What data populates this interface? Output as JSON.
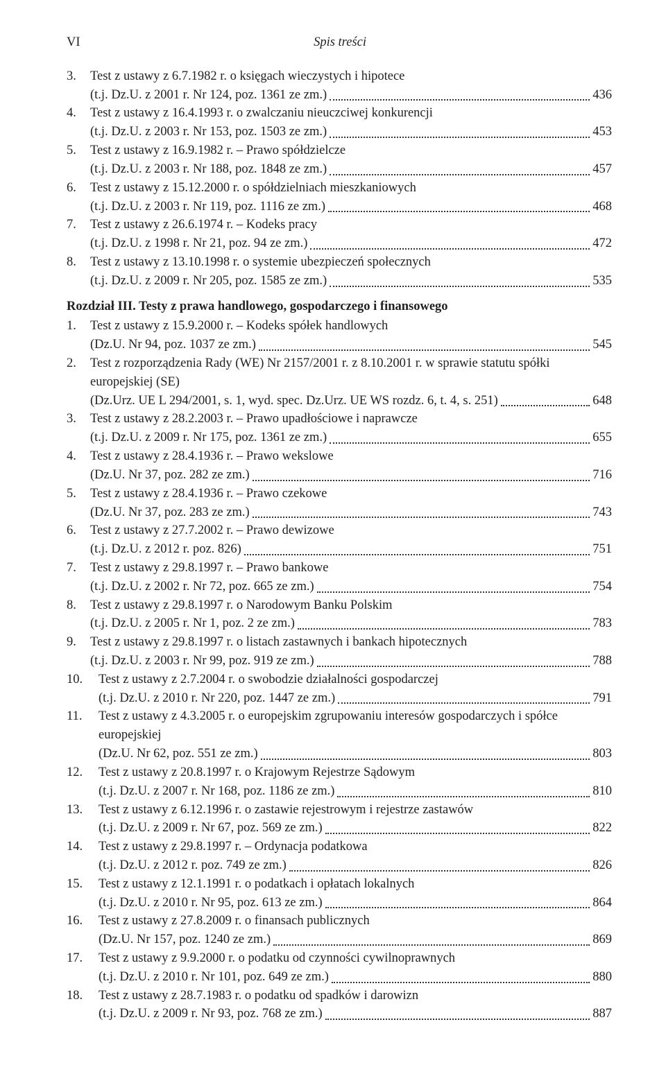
{
  "header": {
    "page_num": "VI",
    "title": "Spis treści"
  },
  "items": [
    {
      "type": "first",
      "num": "3.",
      "txt": "Test z ustawy z 6.7.1982 r. o księgach wieczystych i hipotece"
    },
    {
      "type": "cont",
      "txt": "(t.j. Dz.U. z 2001 r. Nr 124, poz. 1361 ze zm.)",
      "pg": "436"
    },
    {
      "type": "first",
      "num": "4.",
      "txt": "Test z ustawy z 16.4.1993 r. o zwalczaniu nieuczciwej konkurencji"
    },
    {
      "type": "cont",
      "txt": "(t.j. Dz.U. z 2003 r. Nr 153, poz. 1503 ze zm.)",
      "pg": "453"
    },
    {
      "type": "first",
      "num": "5.",
      "txt": "Test z ustawy z 16.9.1982 r. – Prawo spółdzielcze"
    },
    {
      "type": "cont",
      "txt": "(t.j. Dz.U. z 2003 r. Nr 188, poz. 1848 ze zm.)",
      "pg": "457"
    },
    {
      "type": "first",
      "num": "6.",
      "txt": "Test z ustawy z 15.12.2000 r. o spółdzielniach mieszkaniowych"
    },
    {
      "type": "cont",
      "txt": "(t.j. Dz.U. z 2003 r. Nr 119, poz. 1116 ze zm.)",
      "pg": "468"
    },
    {
      "type": "first",
      "num": "7.",
      "txt": "Test z ustawy z 26.6.1974 r. – Kodeks pracy"
    },
    {
      "type": "cont",
      "txt": "(t.j. Dz.U. z 1998 r. Nr 21, poz. 94 ze zm.)",
      "pg": "472"
    },
    {
      "type": "first",
      "num": "8.",
      "txt": "Test z ustawy z 13.10.1998 r. o systemie ubezpieczeń społecznych"
    },
    {
      "type": "cont",
      "txt": "(t.j. Dz.U. z 2009 r. Nr 205, poz. 1585 ze zm.)",
      "pg": "535"
    },
    {
      "type": "chapter",
      "txt": "Rozdział III. Testy z prawa handlowego, gospodarczego i finansowego"
    },
    {
      "type": "first",
      "num": "1.",
      "txt": "Test z ustawy z 15.9.2000 r. – Kodeks spółek handlowych"
    },
    {
      "type": "cont",
      "txt": "(Dz.U. Nr 94, poz. 1037 ze zm.)",
      "pg": "545"
    },
    {
      "type": "first",
      "num": "2.",
      "txt": "Test z rozporządzenia Rady (WE) Nr 2157/2001 r. z 8.10.2001 r. w sprawie statutu spółki"
    },
    {
      "type": "plain",
      "txt": "europejskiej (SE)"
    },
    {
      "type": "cont",
      "txt": "(Dz.Urz. UE L 294/2001, s. 1, wyd. spec. Dz.Urz. UE WS rozdz. 6, t. 4, s. 251)",
      "pg": "648"
    },
    {
      "type": "first",
      "num": "3.",
      "txt": "Test z ustawy z 28.2.2003 r. – Prawo upadłościowe i naprawcze"
    },
    {
      "type": "cont",
      "txt": "(t.j. Dz.U. z 2009 r. Nr 175, poz. 1361 ze zm.)",
      "pg": "655"
    },
    {
      "type": "first",
      "num": "4.",
      "txt": "Test z ustawy z 28.4.1936 r.  – Prawo wekslowe"
    },
    {
      "type": "cont",
      "txt": "(Dz.U. Nr 37, poz. 282 ze zm.)",
      "pg": "716"
    },
    {
      "type": "first",
      "num": "5.",
      "txt": "Test z ustawy z 28.4.1936 r. – Prawo czekowe"
    },
    {
      "type": "cont",
      "txt": "(Dz.U. Nr 37, poz. 283 ze zm.)",
      "pg": "743"
    },
    {
      "type": "first",
      "num": "6.",
      "txt": "Test z ustawy z 27.7.2002 r. – Prawo dewizowe"
    },
    {
      "type": "cont",
      "txt": "(t.j. Dz.U. z 2012 r. poz. 826)",
      "pg": "751"
    },
    {
      "type": "first",
      "num": "7.",
      "txt": "Test z ustawy z 29.8.1997 r. – Prawo bankowe"
    },
    {
      "type": "cont",
      "txt": "(t.j. Dz.U. z 2002 r. Nr 72, poz. 665 ze zm.)",
      "pg": "754"
    },
    {
      "type": "first",
      "num": "8.",
      "txt": "Test z ustawy z 29.8.1997 r. o Narodowym Banku Polskim"
    },
    {
      "type": "cont",
      "txt": "(t.j. Dz.U. z 2005 r. Nr 1, poz. 2 ze zm.)",
      "pg": "783"
    },
    {
      "type": "first",
      "num": "9.",
      "txt": "Test z ustawy z 29.8.1997 r. o listach zastawnych i bankach hipotecznych"
    },
    {
      "type": "cont",
      "txt": "(t.j. Dz.U. z 2003 r. Nr 99, poz. 919 ze zm.)",
      "pg": "788"
    },
    {
      "type": "first",
      "num": "10.",
      "numw": true,
      "txt": "Test z ustawy z 2.7.2004 r. o swobodzie działalności gospodarczej"
    },
    {
      "type": "contw",
      "txt": "(t.j. Dz.U. z 2010 r. Nr 220, poz. 1447 ze zm.)",
      "pg": "791"
    },
    {
      "type": "first",
      "num": "11.",
      "numw": true,
      "txt": "Test z ustawy z 4.3.2005 r. o europejskim zgrupowaniu interesów gospodarczych i spółce"
    },
    {
      "type": "plainw",
      "txt": "europejskiej"
    },
    {
      "type": "contw",
      "txt": "(Dz.U. Nr 62, poz. 551 ze zm.)",
      "pg": "803"
    },
    {
      "type": "first",
      "num": "12.",
      "numw": true,
      "txt": "Test z ustawy z 20.8.1997 r. o Krajowym Rejestrze Sądowym"
    },
    {
      "type": "contw",
      "txt": "(t.j. Dz.U. z 2007 r. Nr 168, poz. 1186 ze zm.)",
      "pg": "810"
    },
    {
      "type": "first",
      "num": "13.",
      "numw": true,
      "txt": "Test z ustawy z 6.12.1996 r. o zastawie rejestrowym i rejestrze zastawów"
    },
    {
      "type": "contw",
      "txt": "(t.j. Dz.U. z 2009 r. Nr 67, poz. 569 ze zm.)",
      "pg": "822"
    },
    {
      "type": "first",
      "num": "14.",
      "numw": true,
      "txt": "Test z ustawy z 29.8.1997 r. – Ordynacja podatkowa"
    },
    {
      "type": "contw",
      "txt": "(t.j. Dz.U. z 2012 r. poz. 749 ze zm.)",
      "pg": "826"
    },
    {
      "type": "first",
      "num": "15.",
      "numw": true,
      "txt": "Test z ustawy z 12.1.1991 r. o podatkach i opłatach lokalnych"
    },
    {
      "type": "contw",
      "txt": "(t.j. Dz.U. z 2010 r. Nr 95, poz. 613 ze zm.)",
      "pg": "864"
    },
    {
      "type": "first",
      "num": "16.",
      "numw": true,
      "txt": "Test z ustawy z 27.8.2009 r. o finansach publicznych"
    },
    {
      "type": "contw",
      "txt": "(Dz.U. Nr 157, poz. 1240 ze zm.)",
      "pg": "869"
    },
    {
      "type": "first",
      "num": "17.",
      "numw": true,
      "txt": "Test z ustawy z 9.9.2000 r. o podatku od czynności cywilnoprawnych"
    },
    {
      "type": "contw",
      "txt": "(t.j. Dz.U. z 2010 r. Nr 101, poz. 649 ze zm.)",
      "pg": "880"
    },
    {
      "type": "first",
      "num": "18.",
      "numw": true,
      "txt": "Test z ustawy z 28.7.1983 r. o podatku od spadków i darowizn"
    },
    {
      "type": "contw",
      "txt": "(t.j. Dz.U. z 2009 r. Nr 93, poz. 768 ze zm.)",
      "pg": "887"
    }
  ]
}
